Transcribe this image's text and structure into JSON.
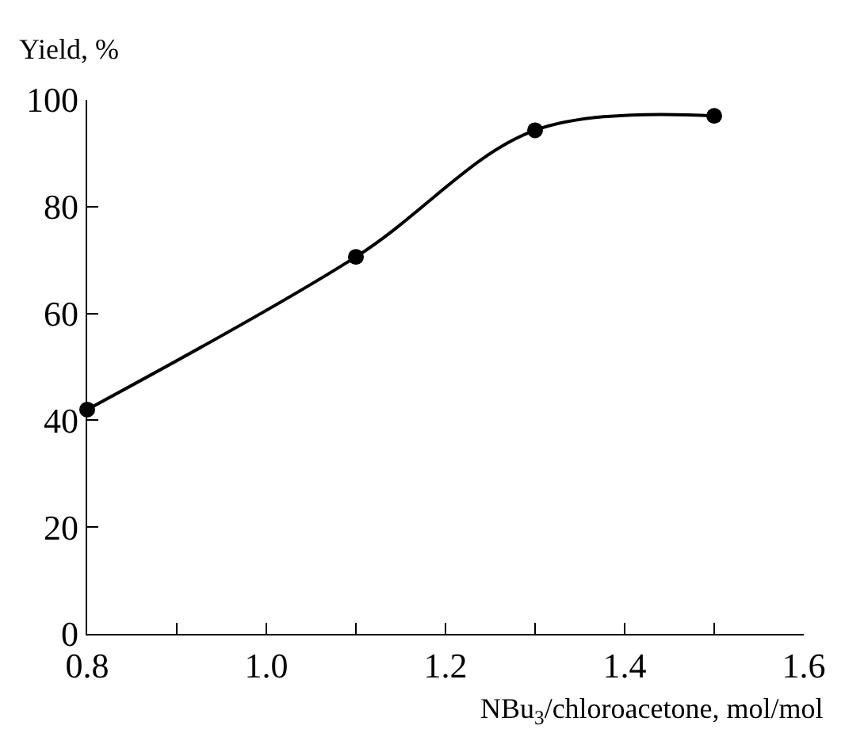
{
  "chart_data": {
    "type": "line",
    "xlabel": "NBu$_{3}$/chloroacetone, mol/mol",
    "ylabel": "Yield, %",
    "x": [
      0.8,
      1.1,
      1.3,
      1.5
    ],
    "series": [
      {
        "color": "#000000",
        "values": [
          42,
          70.6,
          94.3,
          97
        ]
      }
    ],
    "xlim": [
      0.8,
      1.6
    ],
    "xticks": [
      {
        "value": 0.8,
        "label": "0.8"
      },
      {
        "value": 0.9,
        "label": null
      },
      {
        "value": 1.0,
        "label": "1.0"
      },
      {
        "value": 1.1,
        "label": null
      },
      {
        "value": 1.2,
        "label": "1.2"
      },
      {
        "value": 1.3,
        "label": null
      },
      {
        "value": 1.4,
        "label": "1.4"
      },
      {
        "value": 1.5,
        "label": null
      },
      {
        "value": 1.6,
        "label": "1.6"
      }
    ],
    "ylim": [
      0,
      100
    ],
    "yticks": [
      0,
      20,
      40,
      60,
      80,
      100
    ],
    "marker": "circle",
    "line_style": "solid"
  }
}
